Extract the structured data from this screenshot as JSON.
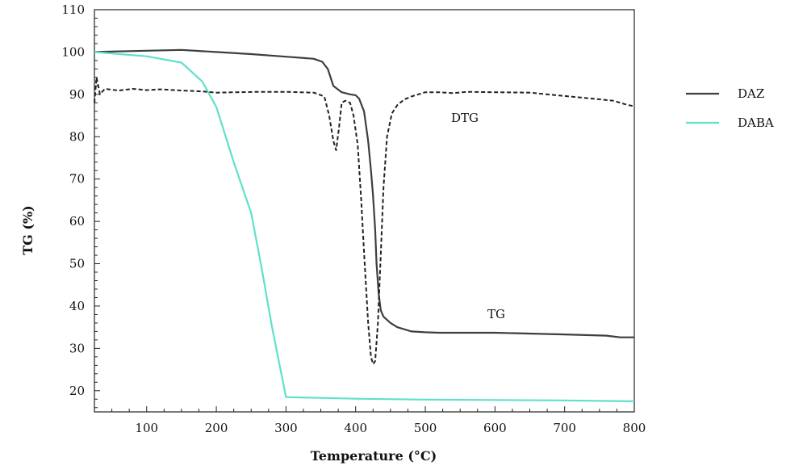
{
  "chart_data": {
    "type": "line",
    "xlabel": "Temperature (°C)",
    "ylabel": "TG (%)",
    "xlim": [
      25,
      800
    ],
    "ylim": [
      15,
      110
    ],
    "xticks": [
      100,
      200,
      300,
      400,
      500,
      600,
      700,
      800
    ],
    "yticks": [
      20,
      30,
      40,
      50,
      60,
      70,
      80,
      90,
      100,
      110
    ],
    "grid": false,
    "legend_position": "right",
    "annotations": [
      {
        "text": "DTG",
        "x": 555,
        "y": 84
      },
      {
        "text": "TG",
        "x": 610,
        "y": 37
      }
    ],
    "series": [
      {
        "name": "DAZ",
        "color": "#3a3f3f",
        "style": "solid",
        "x": [
          25,
          100,
          150,
          200,
          250,
          300,
          340,
          352,
          360,
          368,
          380,
          392,
          400,
          405,
          412,
          418,
          422,
          425,
          428,
          430,
          433,
          436,
          440,
          450,
          460,
          480,
          500,
          520,
          600,
          700,
          760,
          780,
          800
        ],
        "y": [
          100,
          100.3,
          100.5,
          100,
          99.5,
          98.9,
          98.4,
          97.7,
          96,
          92,
          90.5,
          90,
          89.8,
          89,
          86,
          79,
          72,
          66,
          58,
          50,
          43,
          39,
          37.5,
          36,
          35,
          34,
          33.8,
          33.7,
          33.7,
          33.3,
          33,
          32.6,
          32.6
        ]
      },
      {
        "name": "DABA",
        "color": "#5fe0cc",
        "style": "solid",
        "x": [
          25,
          100,
          150,
          180,
          200,
          225,
          250,
          265,
          280,
          300,
          400,
          500,
          600,
          700,
          800
        ],
        "y": [
          100,
          99,
          97.5,
          93,
          87,
          74,
          62,
          49,
          35,
          18.5,
          18.1,
          17.9,
          17.8,
          17.7,
          17.5
        ]
      },
      {
        "name": "",
        "color": "#222222",
        "style": "dashed",
        "x": [
          25,
          28,
          33,
          40,
          60,
          80,
          100,
          120,
          150,
          180,
          200,
          230,
          260,
          300,
          340,
          355,
          362,
          368,
          372,
          376,
          380,
          385,
          392,
          397,
          403,
          408,
          413,
          418,
          422,
          425,
          428,
          432,
          436,
          440,
          445,
          452,
          460,
          470,
          480,
          490,
          500,
          520,
          540,
          560,
          600,
          650,
          700,
          740,
          770,
          790,
          800
        ],
        "y": [
          88,
          94,
          90,
          91.3,
          90.9,
          91.3,
          91,
          91.2,
          90.9,
          90.7,
          90.4,
          90.5,
          90.6,
          90.6,
          90.4,
          89.5,
          85,
          79,
          76.8,
          82,
          88,
          88.5,
          88,
          85,
          78,
          65,
          50,
          36,
          28,
          26.3,
          27,
          36,
          52,
          68,
          80,
          85.5,
          87.5,
          88.8,
          89.5,
          90,
          90.5,
          90.5,
          90.3,
          90.6,
          90.5,
          90.4,
          89.6,
          89,
          88.5,
          87.5,
          87.2
        ]
      }
    ]
  }
}
